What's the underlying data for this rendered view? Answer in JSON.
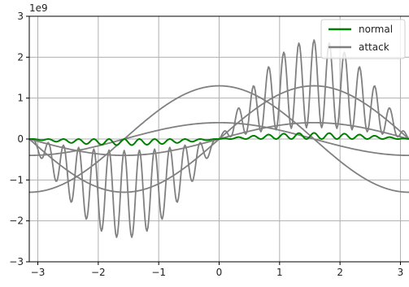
{
  "chart_data": {
    "type": "line",
    "title": "",
    "xlabel": "",
    "ylabel": "",
    "offset_text": "1e9",
    "xlim": [
      -3.14159,
      3.14159
    ],
    "ylim": [
      -3,
      3
    ],
    "xticks": [
      -3,
      -2,
      -1,
      0,
      1,
      2,
      3
    ],
    "yticks": [
      -3,
      -2,
      -1,
      0,
      1,
      2,
      3
    ],
    "xtick_labels": [
      "−3",
      "−2",
      "−1",
      "0",
      "1",
      "2",
      "3"
    ],
    "ytick_labels": [
      "−3",
      "−2",
      "−1",
      "0",
      "1",
      "2",
      "3"
    ],
    "grid": true,
    "legend_position": "top-right",
    "series": [
      {
        "name": "normal",
        "color": "#008000",
        "description": "small oscillation around 0, amplitude up to about 0.15",
        "components": [
          {
            "kind": "sin_envelope_oscillation",
            "envelope_amplitude": 0.15,
            "frequency": 25
          }
        ]
      },
      {
        "name": "attack",
        "color": "#808080",
        "description": "large oscillations plus several smooth curves",
        "components": [
          {
            "kind": "sin_envelope_oscillation",
            "envelope_amplitude": 1.3,
            "frequency": 25,
            "offset_amplitude": 0.7
          },
          {
            "kind": "cos",
            "amplitude": 1.3
          },
          {
            "kind": "sin",
            "amplitude": 1.3
          },
          {
            "kind": "cos",
            "amplitude": 0.4
          },
          {
            "kind": "sin",
            "amplitude": 0.4
          }
        ]
      }
    ],
    "x_samples": 400
  }
}
